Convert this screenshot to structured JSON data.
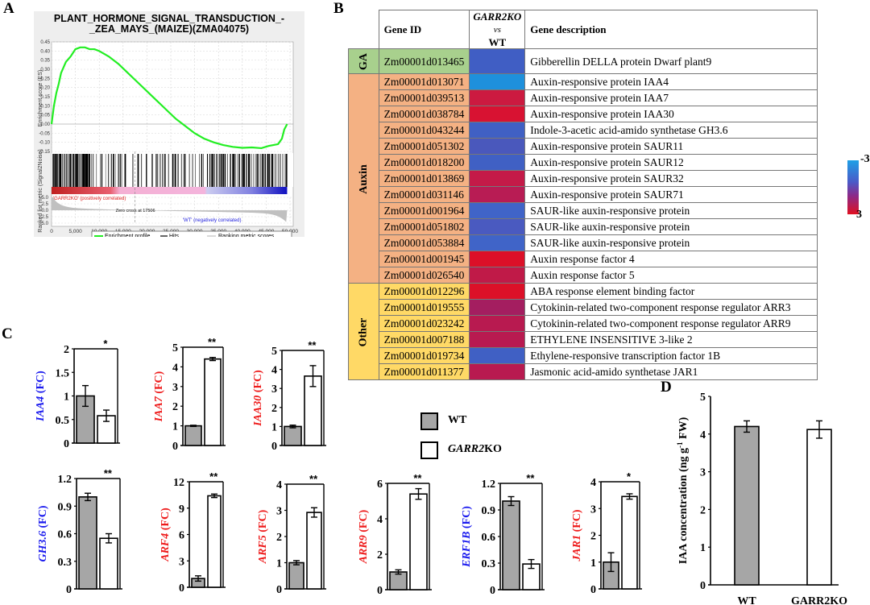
{
  "panels": {
    "A": "A",
    "B": "B",
    "C": "C",
    "D": "D"
  },
  "chart_data": [
    {
      "id": "A",
      "type": "line",
      "title_line1": "PLANT_HORMONE_SIGNAL_TRANSDUCTION_-",
      "title_line2": "_ZEA_MAYS_(MAIZE)(ZMA04075)",
      "ylabel_top": "Enrichment score (ES)",
      "ylabel_bottom": "Ranked list metric (Signal2Noise)",
      "xlabel": "Rank in Ordered Dataset",
      "es_yticks": [
        "0.45",
        "0.40",
        "0.35",
        "0.30",
        "0.25",
        "0.20",
        "0.15",
        "0.10",
        "0.05",
        "0.00",
        "-0.05",
        "-0.10",
        "-0.15"
      ],
      "es_ylim": [
        -0.15,
        0.45
      ],
      "metric_yticks": [
        "5.0",
        "2.5",
        "0.0",
        "-2.5",
        "-5.0"
      ],
      "metric_ylim": [
        -5.0,
        5.0
      ],
      "xticks": [
        "0",
        "5,000",
        "10,000",
        "15,000",
        "20,000",
        "25,000",
        "30,000",
        "35,000",
        "40,000",
        "45,000",
        "50,000"
      ],
      "xlim": [
        0,
        50000
      ],
      "es_curve": {
        "x": [
          0,
          500,
          1000,
          1500,
          2000,
          3000,
          4000,
          5000,
          6000,
          7000,
          8000,
          9000,
          10000,
          12000,
          14000,
          16000,
          18000,
          20000,
          22000,
          24000,
          26000,
          28000,
          30000,
          32000,
          34000,
          36000,
          38000,
          40000,
          42000,
          44000,
          45500,
          46500,
          47500,
          48300,
          48800,
          49400
        ],
        "y": [
          0.0,
          0.1,
          0.17,
          0.22,
          0.28,
          0.34,
          0.37,
          0.41,
          0.42,
          0.42,
          0.41,
          0.41,
          0.4,
          0.37,
          0.33,
          0.28,
          0.23,
          0.18,
          0.13,
          0.08,
          0.03,
          -0.01,
          -0.05,
          -0.08,
          -0.1,
          -0.115,
          -0.125,
          -0.13,
          -0.128,
          -0.132,
          -0.12,
          -0.115,
          -0.11,
          -0.08,
          -0.03,
          0.0
        ]
      },
      "zero_cross_label": "Zero cross at 17506",
      "zero_cross_rank": 17506,
      "pos_label": "'GARR2KO' (positively correlated)",
      "neg_label": "'WT' (negatively correlated)",
      "legend": [
        "Enrichment profile",
        "Hits",
        "Ranking metric scores"
      ],
      "colors": {
        "es": "#22ee22",
        "pos": "#dd2222",
        "neg": "#2222dd",
        "metric": "#c0c0c0"
      }
    },
    {
      "id": "C-IAA4",
      "type": "bar",
      "gene": "IAA4",
      "gene_color": "#1a1aee",
      "ylabel_suffix": " (FC)",
      "categories": [
        "WT",
        "GARR2KO"
      ],
      "values": [
        1.0,
        0.58
      ],
      "errors": [
        0.22,
        0.12
      ],
      "yticks": [
        "0",
        "0.5",
        "1",
        "1.5",
        "2"
      ],
      "ylim": [
        0,
        2
      ],
      "significance": "*"
    },
    {
      "id": "C-IAA7",
      "type": "bar",
      "gene": "IAA7",
      "gene_color": "#ee1a1a",
      "ylabel_suffix": " (FC)",
      "categories": [
        "WT",
        "GARR2KO"
      ],
      "values": [
        1.0,
        4.4
      ],
      "errors": [
        0.03,
        0.08
      ],
      "yticks": [
        "0",
        "1",
        "2",
        "3",
        "4",
        "5"
      ],
      "ylim": [
        0,
        5
      ],
      "significance": "**"
    },
    {
      "id": "C-IAA30",
      "type": "bar",
      "gene": "IAA30",
      "gene_color": "#ee1a1a",
      "ylabel_suffix": " (FC)",
      "categories": [
        "WT",
        "GARR2KO"
      ],
      "values": [
        1.0,
        3.65
      ],
      "errors": [
        0.07,
        0.55
      ],
      "yticks": [
        "0",
        "1",
        "2",
        "3",
        "4",
        "5"
      ],
      "ylim": [
        0,
        5
      ],
      "significance": "**"
    },
    {
      "id": "C-GH3.6",
      "type": "bar",
      "gene": "GH3.6",
      "gene_color": "#1a1aee",
      "ylabel_suffix": " (FC)",
      "categories": [
        "WT",
        "GARR2KO"
      ],
      "values": [
        1.0,
        0.55
      ],
      "errors": [
        0.04,
        0.05
      ],
      "yticks": [
        "0",
        "0.3",
        "0.6",
        "0.9",
        "1.2"
      ],
      "ylim": [
        0,
        1.2
      ],
      "significance": "**"
    },
    {
      "id": "C-ARF4",
      "type": "bar",
      "gene": "ARF4",
      "gene_color": "#ee1a1a",
      "ylabel_suffix": " (FC)",
      "categories": [
        "WT",
        "GARR2KO"
      ],
      "values": [
        1.0,
        10.4
      ],
      "errors": [
        0.3,
        0.2
      ],
      "yticks": [
        "0",
        "3",
        "6",
        "9",
        "12"
      ],
      "ylim": [
        0,
        12
      ],
      "significance": "**"
    },
    {
      "id": "C-ARF5",
      "type": "bar",
      "gene": "ARF5",
      "gene_color": "#ee1a1a",
      "ylabel_suffix": " (FC)",
      "categories": [
        "WT",
        "GARR2KO"
      ],
      "values": [
        1.0,
        2.92
      ],
      "errors": [
        0.08,
        0.18
      ],
      "yticks": [
        "0",
        "1",
        "2",
        "3",
        "4"
      ],
      "ylim": [
        0,
        4
      ],
      "significance": "**"
    },
    {
      "id": "C-ARR9",
      "type": "bar",
      "gene": "ARR9",
      "gene_color": "#ee1a1a",
      "ylabel_suffix": " (FC)",
      "categories": [
        "WT",
        "GARR2KO"
      ],
      "values": [
        1.0,
        5.4
      ],
      "errors": [
        0.12,
        0.3
      ],
      "yticks": [
        "0",
        "2",
        "4",
        "6"
      ],
      "ylim": [
        0,
        6
      ],
      "significance": "**"
    },
    {
      "id": "C-ERF1B",
      "type": "bar",
      "gene": "ERF1B",
      "gene_color": "#1a1aee",
      "ylabel_suffix": " (FC)",
      "categories": [
        "WT",
        "GARR2KO"
      ],
      "values": [
        1.0,
        0.29
      ],
      "errors": [
        0.05,
        0.05
      ],
      "yticks": [
        "0",
        "0.3",
        "0.6",
        "0.9",
        "1.2"
      ],
      "ylim": [
        0,
        1.2
      ],
      "significance": "**"
    },
    {
      "id": "C-JAR1",
      "type": "bar",
      "gene": "JAR1",
      "gene_color": "#ee1a1a",
      "ylabel_suffix": " (FC)",
      "categories": [
        "WT",
        "GARR2KO"
      ],
      "values": [
        1.0,
        3.45
      ],
      "errors": [
        0.35,
        0.1
      ],
      "yticks": [
        "0",
        "1",
        "2",
        "3",
        "4"
      ],
      "ylim": [
        0,
        4
      ],
      "significance": "*"
    },
    {
      "id": "D",
      "type": "bar",
      "ylabel": "IAA concentration (ng g-1 FW)",
      "categories": [
        "WT",
        "GARR2KO"
      ],
      "values": [
        4.2,
        4.12
      ],
      "errors": [
        0.15,
        0.23
      ],
      "yticks": [
        "0",
        "1",
        "2",
        "3",
        "4",
        "5"
      ],
      "ylim": [
        0,
        5
      ]
    },
    {
      "id": "B",
      "type": "heatmap",
      "headers": {
        "gene_id": "Gene ID",
        "fc_line1": "GARR2KO",
        "fc_line2": "vs",
        "fc_line3": "WT",
        "desc": "Gene description"
      },
      "colorbar": {
        "min_label": "-3",
        "max_label": "3"
      },
      "groups": [
        {
          "name": "GA",
          "color": "#a8d08d",
          "rows": [
            {
              "id": "Zm00001d013465",
              "value": -2.2,
              "color": "#405ec4",
              "desc": "Gibberellin DELLA protein Dwarf plant9"
            }
          ]
        },
        {
          "name": "Auxin",
          "color": "#f4b183",
          "rows": [
            {
              "id": "Zm00001d013071",
              "value": -3.0,
              "color": "#1e90dc",
              "desc": "Auxin-responsive protein IAA4"
            },
            {
              "id": "Zm00001d039513",
              "value": 2.6,
              "color": "#cc1a40",
              "desc": "Auxin-responsive protein IAA7"
            },
            {
              "id": "Zm00001d038784",
              "value": 3.0,
              "color": "#d81232",
              "desc": "Auxin-responsive protein IAA30"
            },
            {
              "id": "Zm00001d043244",
              "value": -2.2,
              "color": "#4060c4",
              "desc": "Indole-3-acetic acid-amido synthetase GH3.6"
            },
            {
              "id": "Zm00001d051302",
              "value": -2.0,
              "color": "#4a58bc",
              "desc": "Auxin-responsive protein SAUR11"
            },
            {
              "id": "Zm00001d018200",
              "value": -2.2,
              "color": "#4060c4",
              "desc": "Auxin-responsive protein SAUR12"
            },
            {
              "id": "Zm00001d013869",
              "value": 2.4,
              "color": "#c41a48",
              "desc": "Auxin-responsive protein SAUR32"
            },
            {
              "id": "Zm00001d031146",
              "value": 2.2,
              "color": "#b81c54",
              "desc": "Auxin-responsive protein SAUR71"
            },
            {
              "id": "Zm00001d001964",
              "value": -2.2,
              "color": "#4064c8",
              "desc": "SAUR-like auxin-responsive protein"
            },
            {
              "id": "Zm00001d051802",
              "value": -2.0,
              "color": "#4a5ac0",
              "desc": "SAUR-like auxin-responsive protein"
            },
            {
              "id": "Zm00001d053884",
              "value": -2.2,
              "color": "#4064c8",
              "desc": "SAUR-like auxin-responsive protein"
            },
            {
              "id": "Zm00001d001945",
              "value": 3.0,
              "color": "#dc1028",
              "desc": "Auxin response factor 4"
            },
            {
              "id": "Zm00001d026540",
              "value": 2.5,
              "color": "#c01a48",
              "desc": "Auxin response factor 5"
            }
          ]
        },
        {
          "name": "Other",
          "color": "#ffd966",
          "rows": [
            {
              "id": "Zm00001d012296",
              "value": 3.0,
              "color": "#dc1028",
              "desc": "ABA response element binding factor"
            },
            {
              "id": "Zm00001d019555",
              "value": 1.8,
              "color": "#a41e60",
              "desc": "Cytokinin-related two-component response regulator ARR3"
            },
            {
              "id": "Zm00001d023242",
              "value": 2.3,
              "color": "#b81a50",
              "desc": "Cytokinin-related two-component response regulator ARR9"
            },
            {
              "id": "Zm00001d007188",
              "value": 2.3,
              "color": "#b81a50",
              "desc": "ETHYLENE INSENSITIVE 3-like 2"
            },
            {
              "id": "Zm00001d019734",
              "value": -2.2,
              "color": "#4060c4",
              "desc": "Ethylene-responsive transcription factor 1B"
            },
            {
              "id": "Zm00001d011377",
              "value": 2.3,
              "color": "#b81a50",
              "desc": "Jasmonic acid-amido synthetase JAR1"
            }
          ]
        }
      ]
    }
  ],
  "legend_C": {
    "wt": "WT",
    "ko_italic": "GARR2",
    "ko_suffix": "KO",
    "wt_color": "#a6a6a6",
    "ko_color": "#ffffff"
  }
}
